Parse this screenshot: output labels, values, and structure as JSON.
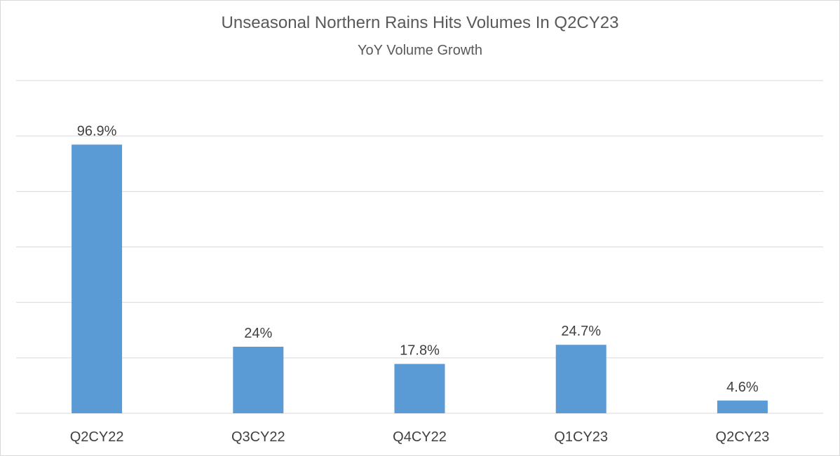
{
  "chart_data": {
    "type": "bar",
    "title": "Unseasonal Northern Rains Hits Volumes In Q2CY23",
    "subtitle": "YoY Volume Growth",
    "categories": [
      "Q2CY22",
      "Q3CY22",
      "Q4CY22",
      "Q1CY23",
      "Q2CY23"
    ],
    "values": [
      96.9,
      24,
      17.8,
      24.7,
      4.6
    ],
    "data_labels": [
      "96.9%",
      "24%",
      "17.8%",
      "24.7%",
      "4.6%"
    ],
    "ylim": [
      0,
      120
    ],
    "grid": true,
    "legend": false,
    "colors": {
      "bar": "#5b9bd5",
      "grid": "#d9d9d9",
      "text": "#404040",
      "title": "#595959"
    }
  }
}
